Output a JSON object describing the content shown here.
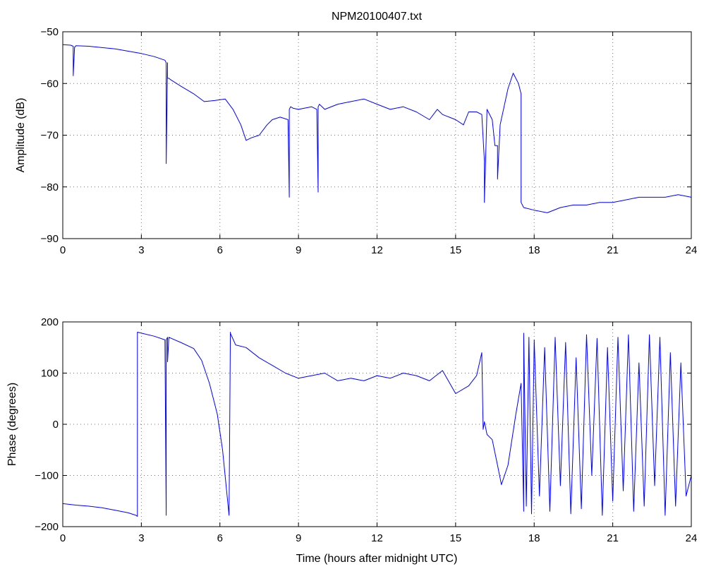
{
  "figure": {
    "title": "NPM20100407.txt",
    "line_color": "#0000ff"
  },
  "chart_data": [
    {
      "type": "line",
      "title": "NPM20100407.txt",
      "xlabel": "",
      "ylabel": "Amplitude (dB)",
      "xlim": [
        0,
        24
      ],
      "ylim": [
        -90,
        -50
      ],
      "xticks": [
        "0",
        "3",
        "6",
        "9",
        "12",
        "15",
        "18",
        "21",
        "24"
      ],
      "yticks": [
        "−50",
        "−60",
        "−70",
        "−80",
        "−90"
      ],
      "grid": true,
      "series": [
        {
          "x": [
            0,
            0.3,
            0.4,
            0.4,
            0.45,
            0.5,
            1.0,
            2.0,
            3.0,
            3.5,
            3.9,
            3.95,
            3.95,
            4.0,
            4.0,
            4.05,
            4.1,
            4.5,
            5.0,
            5.4,
            5.8,
            6.2,
            6.5,
            6.8,
            7.0,
            7.2,
            7.5,
            7.8,
            8.0,
            8.3,
            8.6,
            8.65,
            8.65,
            8.7,
            8.8,
            9.0,
            9.5,
            9.7,
            9.75,
            9.75,
            9.8,
            10.0,
            10.5,
            11.0,
            11.5,
            12.0,
            12.5,
            13.0,
            13.5,
            14.0,
            14.3,
            14.5,
            15.0,
            15.3,
            15.5,
            15.8,
            16.0,
            16.1,
            16.1,
            16.2,
            16.4,
            16.5,
            16.6,
            16.6,
            16.7,
            17.0,
            17.2,
            17.4,
            17.5,
            17.5,
            17.6,
            18.0,
            18.5,
            19.0,
            19.5,
            20.0,
            20.5,
            21.0,
            21.5,
            22.0,
            22.5,
            23.0,
            23.5,
            24.0
          ],
          "y": [
            -52.5,
            -52.6,
            -52.8,
            -58.5,
            -53,
            -52.7,
            -52.8,
            -53.3,
            -54.2,
            -54.8,
            -55.5,
            -56,
            -75.5,
            -56,
            -59,
            -59,
            -59.2,
            -60.5,
            -62,
            -63.5,
            -63.3,
            -63,
            -65,
            -68,
            -71,
            -70.5,
            -70,
            -68,
            -67,
            -66.5,
            -67,
            -82,
            -65,
            -64.5,
            -64.8,
            -65,
            -64.5,
            -65,
            -81,
            -64.5,
            -64,
            -65,
            -64,
            -63.5,
            -63,
            -64,
            -65,
            -64.5,
            -65.5,
            -67,
            -65,
            -66,
            -67,
            -68,
            -65.5,
            -65.5,
            -66,
            -75,
            -83,
            -65,
            -67,
            -72,
            -72,
            -78.5,
            -68,
            -61,
            -58,
            -60,
            -62,
            -83,
            -84,
            -84.5,
            -85,
            -84,
            -83.5,
            -83.5,
            -83,
            -83,
            -82.5,
            -82,
            -82,
            -82,
            -81.5,
            -82
          ]
        }
      ]
    },
    {
      "type": "line",
      "title": "",
      "xlabel": "Time (hours after midnight UTC)",
      "ylabel": "Phase (degrees)",
      "xlim": [
        0,
        24
      ],
      "ylim": [
        -200,
        200
      ],
      "xticks": [
        "0",
        "3",
        "6",
        "9",
        "12",
        "15",
        "18",
        "21",
        "24"
      ],
      "yticks": [
        "200",
        "100",
        "0",
        "−100",
        "−200"
      ],
      "grid": true,
      "series": [
        {
          "x": [
            0,
            0.5,
            1.0,
            1.5,
            2.0,
            2.5,
            2.8,
            2.85,
            2.85,
            3.0,
            3.5,
            3.9,
            3.95,
            3.95,
            4.0,
            4.0,
            4.05,
            4.5,
            5.0,
            5.3,
            5.6,
            5.9,
            6.1,
            6.35,
            6.4,
            6.4,
            6.6,
            7.0,
            7.5,
            8.0,
            8.5,
            9.0,
            9.5,
            10.0,
            10.5,
            11.0,
            11.5,
            12.0,
            12.5,
            13.0,
            13.5,
            14.0,
            14.5,
            15.0,
            15.5,
            15.8,
            16.0,
            16.05,
            16.1,
            16.2,
            16.4,
            16.6,
            16.75,
            17.0,
            17.3,
            17.5,
            17.6,
            17.6,
            17.7,
            17.8,
            17.9,
            18.0,
            18.2,
            18.4,
            18.6,
            18.8,
            19.0,
            19.2,
            19.4,
            19.6,
            19.8,
            20.0,
            20.2,
            20.4,
            20.6,
            20.8,
            21.0,
            21.2,
            21.4,
            21.6,
            21.8,
            22.0,
            22.2,
            22.4,
            22.6,
            22.8,
            23.0,
            23.2,
            23.4,
            23.6,
            23.8,
            24.0
          ],
          "y": [
            -155,
            -158,
            -160,
            -163,
            -168,
            -173,
            -178,
            -180,
            180,
            178,
            172,
            165,
            -178,
            165,
            170,
            122,
            170,
            160,
            148,
            125,
            80,
            20,
            -50,
            -178,
            180,
            178,
            155,
            150,
            130,
            115,
            100,
            90,
            95,
            100,
            85,
            90,
            85,
            95,
            90,
            100,
            95,
            85,
            105,
            60,
            75,
            95,
            140,
            -10,
            5,
            -20,
            -30,
            -80,
            -118,
            -80,
            20,
            80,
            -170,
            178,
            -160,
            170,
            -175,
            165,
            -140,
            150,
            -170,
            170,
            -120,
            160,
            -175,
            130,
            -165,
            175,
            -100,
            168,
            -178,
            150,
            -150,
            170,
            -130,
            175,
            -170,
            120,
            -160,
            175,
            -120,
            170,
            -178,
            140,
            -160,
            120,
            -140,
            -100
          ]
        }
      ]
    }
  ]
}
